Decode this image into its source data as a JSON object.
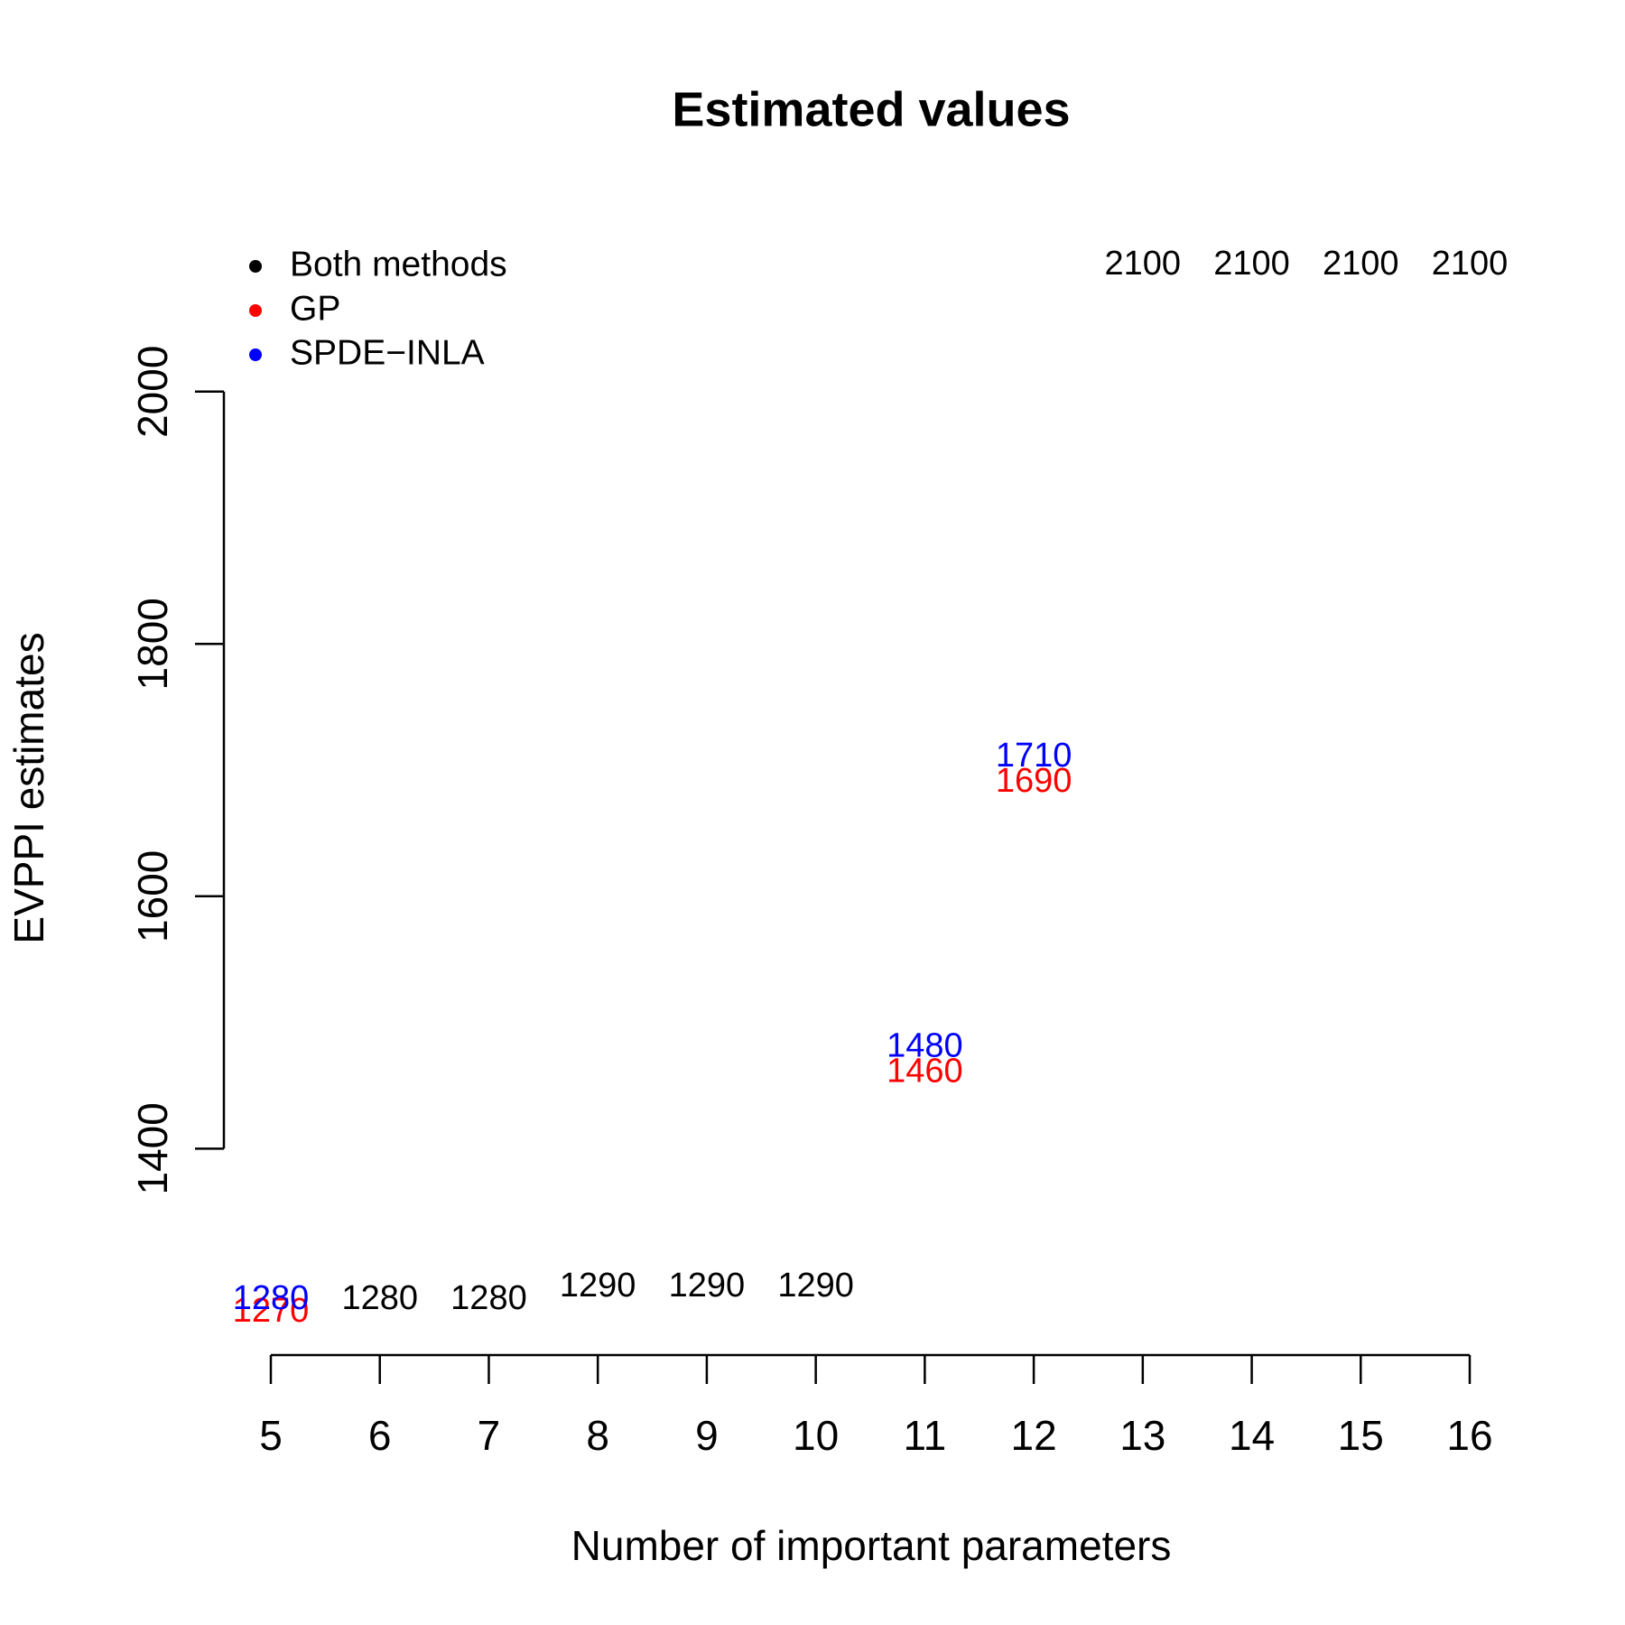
{
  "chart_data": {
    "type": "text-scatter",
    "title": "Estimated values",
    "x_label": "Number of important parameters",
    "y_label": "EVPPI estimates",
    "x": [
      5,
      6,
      7,
      8,
      9,
      10,
      11,
      12,
      13,
      14,
      15,
      16
    ],
    "series": [
      {
        "name": "Both methods",
        "color": "#000000",
        "values": [
          null,
          1280,
          1280,
          1290,
          1290,
          1290,
          null,
          null,
          2100,
          2100,
          2100,
          2100
        ]
      },
      {
        "name": "GP",
        "color": "#ff0000",
        "values": [
          1270,
          null,
          null,
          null,
          null,
          null,
          1460,
          1690,
          null,
          null,
          null,
          null
        ]
      },
      {
        "name": "SPDE−INLA",
        "color": "#0000ff",
        "values": [
          1280,
          null,
          null,
          null,
          null,
          null,
          1480,
          1710,
          null,
          null,
          null,
          null
        ]
      }
    ],
    "xlim": [
      5,
      16
    ],
    "xticks": [
      5,
      6,
      7,
      8,
      9,
      10,
      11,
      12,
      13,
      14,
      15,
      16
    ],
    "ylim": [
      1270,
      2100
    ],
    "yticks": [
      1400,
      1600,
      1800,
      2000
    ],
    "legend": "top-left"
  }
}
